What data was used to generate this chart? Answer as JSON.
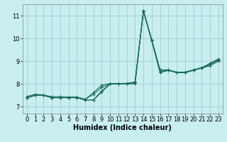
{
  "title": "",
  "xlabel": "Humidex (Indice chaleur)",
  "bg_color": "#c8eef0",
  "grid_color": "#9ecfcf",
  "line_color": "#1a6b5a",
  "xlim": [
    -0.5,
    23.5
  ],
  "ylim": [
    6.7,
    11.5
  ],
  "yticks": [
    7,
    8,
    9,
    10,
    11
  ],
  "xticks": [
    0,
    1,
    2,
    3,
    4,
    5,
    6,
    7,
    8,
    9,
    10,
    11,
    12,
    13,
    14,
    15,
    16,
    17,
    18,
    19,
    20,
    21,
    22,
    23
  ],
  "series": [
    [
      7.4,
      7.5,
      7.5,
      7.4,
      7.4,
      7.4,
      7.4,
      7.3,
      7.3,
      7.65,
      8.0,
      8.0,
      8.0,
      8.0,
      11.2,
      9.9,
      8.5,
      8.6,
      8.5,
      8.5,
      8.6,
      8.7,
      8.8,
      9.0
    ],
    [
      7.45,
      7.55,
      7.52,
      7.44,
      7.44,
      7.42,
      7.43,
      7.33,
      7.55,
      7.85,
      8.01,
      8.02,
      8.03,
      8.05,
      11.22,
      9.92,
      8.52,
      8.61,
      8.51,
      8.51,
      8.61,
      8.71,
      8.85,
      9.05
    ],
    [
      7.4,
      7.5,
      7.5,
      7.4,
      7.42,
      7.42,
      7.42,
      7.32,
      7.62,
      7.95,
      8.02,
      8.02,
      8.02,
      8.08,
      11.22,
      9.95,
      8.62,
      8.62,
      8.52,
      8.52,
      8.62,
      8.72,
      8.9,
      9.08
    ],
    [
      7.4,
      7.5,
      7.5,
      7.4,
      7.4,
      7.4,
      7.4,
      7.3,
      7.3,
      7.7,
      8.0,
      8.0,
      8.0,
      8.1,
      11.2,
      9.9,
      8.6,
      8.6,
      8.5,
      8.5,
      8.6,
      8.7,
      8.9,
      9.1
    ]
  ],
  "marker": "+",
  "markersize": 3.5,
  "linewidth": 0.8,
  "tick_fontsize": 6,
  "xlabel_fontsize": 7
}
